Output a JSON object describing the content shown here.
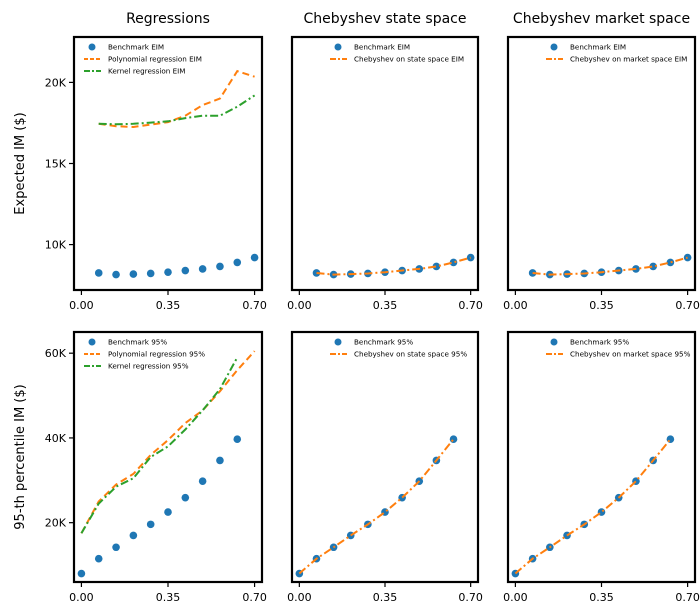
{
  "chart_data": [
    {
      "type": "scatter",
      "title": "Regressions",
      "xlabel": "",
      "ylabel": "Expected IM ($)",
      "xlim": [
        -0.03,
        0.73
      ],
      "ylim": [
        7200,
        22800
      ],
      "xticks": [
        0.0,
        0.35,
        0.7
      ],
      "xtick_labels": [
        "0.00",
        "0.35",
        "0.70"
      ],
      "yticks": [
        10000,
        15000,
        20000
      ],
      "ytick_labels": [
        "10K",
        "15K",
        "20K"
      ],
      "legend_position": "upper-left",
      "x": [
        0.0,
        0.07,
        0.14,
        0.21,
        0.28,
        0.35,
        0.42,
        0.49,
        0.56,
        0.63,
        0.7
      ],
      "series": [
        {
          "name": "Benchmark EIM",
          "style": "dots",
          "color": "#1f77b4",
          "values": [
            null,
            8250,
            8150,
            8180,
            8220,
            8300,
            8400,
            8500,
            8650,
            8900,
            9200
          ]
        },
        {
          "name": "Polynomial regression EIM",
          "style": "dashed",
          "color": "#ff7f0e",
          "values": [
            null,
            17450,
            17300,
            17250,
            17400,
            17550,
            17950,
            18600,
            19000,
            20700,
            20350
          ]
        },
        {
          "name": "Kernel regression EIM",
          "style": "dashdot",
          "color": "#2ca02c",
          "values": [
            null,
            17450,
            17420,
            17450,
            17520,
            17600,
            17800,
            17950,
            17950,
            18500,
            19200
          ]
        }
      ]
    },
    {
      "type": "scatter",
      "title": "Chebyshev state space",
      "xlabel": "",
      "ylabel": "",
      "xlim": [
        -0.03,
        0.73
      ],
      "ylim": [
        7200,
        22800
      ],
      "xticks": [
        0.0,
        0.35,
        0.7
      ],
      "xtick_labels": [
        "0.00",
        "0.35",
        "0.70"
      ],
      "legend_position": "upper-center",
      "x": [
        0.0,
        0.07,
        0.14,
        0.21,
        0.28,
        0.35,
        0.42,
        0.49,
        0.56,
        0.63,
        0.7
      ],
      "series": [
        {
          "name": "Benchmark EIM",
          "style": "dots",
          "color": "#1f77b4",
          "values": [
            null,
            8250,
            8150,
            8180,
            8220,
            8300,
            8400,
            8500,
            8650,
            8900,
            9200
          ]
        },
        {
          "name": "Chebyshev on state space EIM",
          "style": "dashdot",
          "color": "#ff7f0e",
          "values": [
            null,
            8250,
            8150,
            8180,
            8220,
            8300,
            8400,
            8500,
            8650,
            8900,
            9200
          ]
        }
      ]
    },
    {
      "type": "scatter",
      "title": "Chebyshev market space",
      "xlabel": "",
      "ylabel": "",
      "xlim": [
        -0.03,
        0.73
      ],
      "ylim": [
        7200,
        22800
      ],
      "xticks": [
        0.0,
        0.35,
        0.7
      ],
      "xtick_labels": [
        "0.00",
        "0.35",
        "0.70"
      ],
      "legend_position": "upper-center",
      "x": [
        0.0,
        0.07,
        0.14,
        0.21,
        0.28,
        0.35,
        0.42,
        0.49,
        0.56,
        0.63,
        0.7
      ],
      "series": [
        {
          "name": "Benchmark EIM",
          "style": "dots",
          "color": "#1f77b4",
          "values": [
            null,
            8250,
            8150,
            8180,
            8220,
            8300,
            8400,
            8500,
            8650,
            8900,
            9200
          ]
        },
        {
          "name": "Chebyshev on market space EIM",
          "style": "dashdot",
          "color": "#ff7f0e",
          "values": [
            null,
            8250,
            8150,
            8180,
            8220,
            8300,
            8400,
            8500,
            8650,
            8900,
            9200
          ]
        }
      ]
    },
    {
      "type": "scatter",
      "title": "",
      "xlabel": "",
      "ylabel": "95-th percentile IM ($)",
      "xlim": [
        -0.03,
        0.73
      ],
      "ylim": [
        6000,
        65000
      ],
      "xticks": [
        0.0,
        0.35,
        0.7
      ],
      "xtick_labels": [
        "0.00",
        "0.35",
        "0.70"
      ],
      "yticks": [
        20000,
        40000,
        60000
      ],
      "ytick_labels": [
        "20K",
        "40K",
        "60K"
      ],
      "legend_position": "upper-left",
      "x": [
        0.0,
        0.07,
        0.14,
        0.21,
        0.28,
        0.35,
        0.42,
        0.49,
        0.56,
        0.63,
        0.7
      ],
      "series": [
        {
          "name": "Benchmark 95%",
          "style": "dots",
          "color": "#1f77b4",
          "values": [
            8000,
            11500,
            14200,
            17000,
            19600,
            22500,
            25900,
            29800,
            34700,
            39700,
            null
          ]
        },
        {
          "name": "Polynomial regression 95%",
          "style": "dashed",
          "color": "#ff7f0e",
          "values": [
            17500,
            25000,
            29000,
            31500,
            36000,
            39500,
            43500,
            46500,
            51000,
            56000,
            60500
          ]
        },
        {
          "name": "Kernel regression 95%",
          "style": "dashdot",
          "color": "#2ca02c",
          "values": [
            17500,
            24500,
            28500,
            30500,
            35500,
            38000,
            42000,
            46500,
            51500,
            59000,
            null
          ]
        }
      ]
    },
    {
      "type": "scatter",
      "title": "",
      "xlabel": "",
      "ylabel": "",
      "xlim": [
        -0.03,
        0.73
      ],
      "ylim": [
        6000,
        65000
      ],
      "xticks": [
        0.0,
        0.35,
        0.7
      ],
      "xtick_labels": [
        "0.00",
        "0.35",
        "0.70"
      ],
      "legend_position": "upper-center",
      "x": [
        0.0,
        0.07,
        0.14,
        0.21,
        0.28,
        0.35,
        0.42,
        0.49,
        0.56,
        0.63,
        0.7
      ],
      "series": [
        {
          "name": "Benchmark 95%",
          "style": "dots",
          "color": "#1f77b4",
          "values": [
            8000,
            11500,
            14200,
            17000,
            19600,
            22500,
            25900,
            29800,
            34700,
            39700,
            null
          ]
        },
        {
          "name": "Chebyshev on state space 95%",
          "style": "dashdot",
          "color": "#ff7f0e",
          "values": [
            8000,
            11500,
            14200,
            17000,
            19600,
            22500,
            25900,
            29800,
            34700,
            39700,
            null
          ]
        }
      ]
    },
    {
      "type": "scatter",
      "title": "",
      "xlabel": "",
      "ylabel": "",
      "xlim": [
        -0.03,
        0.73
      ],
      "ylim": [
        6000,
        65000
      ],
      "xticks": [
        0.0,
        0.35,
        0.7
      ],
      "xtick_labels": [
        "0.00",
        "0.35",
        "0.70"
      ],
      "legend_position": "upper-center",
      "x": [
        0.0,
        0.07,
        0.14,
        0.21,
        0.28,
        0.35,
        0.42,
        0.49,
        0.56,
        0.63,
        0.7
      ],
      "series": [
        {
          "name": "Benchmark 95%",
          "style": "dots",
          "color": "#1f77b4",
          "values": [
            8000,
            11500,
            14200,
            17000,
            19600,
            22500,
            25900,
            29800,
            34700,
            39700,
            null
          ]
        },
        {
          "name": "Chebyshev on market space 95%",
          "style": "dashdot",
          "color": "#ff7f0e",
          "values": [
            8000,
            11500,
            14200,
            17000,
            19600,
            22500,
            25900,
            29800,
            34700,
            39700,
            null
          ]
        }
      ]
    }
  ]
}
